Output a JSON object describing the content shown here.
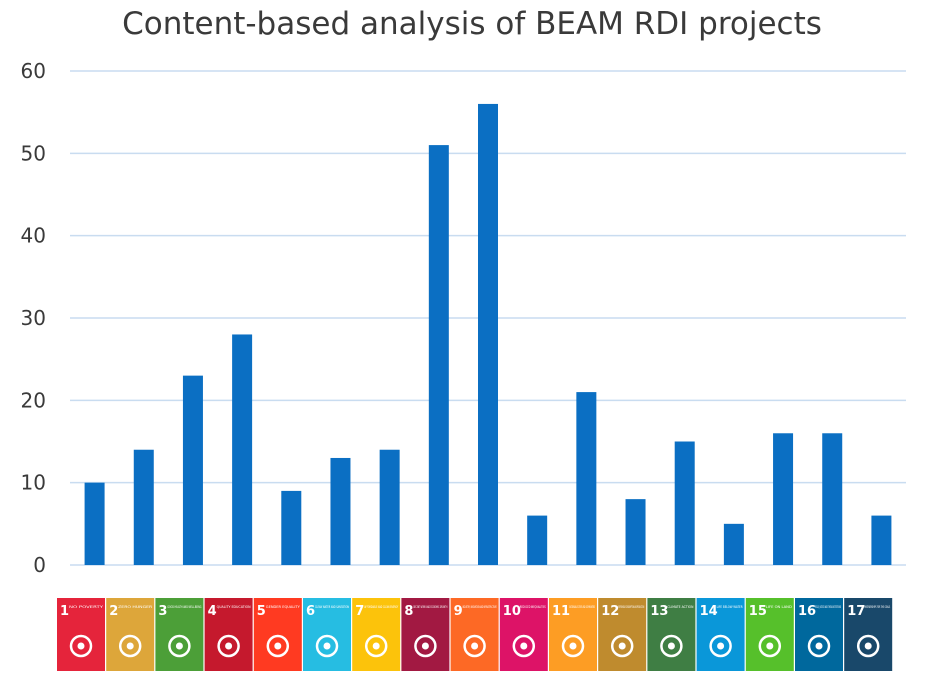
{
  "chart_data": {
    "type": "bar",
    "title": "Content-based analysis of BEAM RDI projects",
    "xlabel": "",
    "ylabel": "",
    "ylim": [
      0,
      60
    ],
    "yticks": [
      "0",
      "10",
      "20",
      "30",
      "40",
      "50",
      "60"
    ],
    "grid": true,
    "bar_color": "#0b6fc3",
    "grid_color": "#c9dcf0",
    "categories": [
      "1",
      "2",
      "3",
      "4",
      "5",
      "6",
      "7",
      "8",
      "9",
      "10",
      "11",
      "12",
      "13",
      "14",
      "15",
      "16",
      "17"
    ],
    "values": [
      10,
      14,
      23,
      28,
      9,
      13,
      14,
      51,
      56,
      6,
      21,
      8,
      15,
      5,
      16,
      16,
      6
    ]
  },
  "sdg_tiles": [
    {
      "num": "1",
      "label": "NO POVERTY",
      "color": "#e5243b",
      "icon": "people-icon"
    },
    {
      "num": "2",
      "label": "ZERO HUNGER",
      "color": "#dda63a",
      "icon": "bowl-icon"
    },
    {
      "num": "3",
      "label": "GOOD HEALTH AND WELL-BEING",
      "color": "#4c9f38",
      "icon": "heartbeat-icon"
    },
    {
      "num": "4",
      "label": "QUALITY EDUCATION",
      "color": "#c5192d",
      "icon": "book-icon"
    },
    {
      "num": "5",
      "label": "GENDER EQUALITY",
      "color": "#ff3a21",
      "icon": "gender-icon"
    },
    {
      "num": "6",
      "label": "CLEAN WATER AND SANITATION",
      "color": "#26bde2",
      "icon": "water-icon"
    },
    {
      "num": "7",
      "label": "AFFORDABLE AND CLEAN ENERGY",
      "color": "#fcc30b",
      "icon": "sun-icon"
    },
    {
      "num": "8",
      "label": "DECENT WORK AND ECONOMIC GROWTH",
      "color": "#a21942",
      "icon": "growth-chart-icon"
    },
    {
      "num": "9",
      "label": "INDUSTRY, INNOVATION AND INFRASTRUCTURE",
      "color": "#fd6925",
      "icon": "cubes-icon"
    },
    {
      "num": "10",
      "label": "REDUCED INEQUALITIES",
      "color": "#dd1367",
      "icon": "equality-icon"
    },
    {
      "num": "11",
      "label": "SUSTAINABLE CITIES AND COMMUNITIES",
      "color": "#fd9d24",
      "icon": "city-icon"
    },
    {
      "num": "12",
      "label": "RESPONSIBLE CONSUMPTION AND PRODUCTION",
      "color": "#bf8b2e",
      "icon": "infinity-icon"
    },
    {
      "num": "13",
      "label": "CLIMATE ACTION",
      "color": "#3f7e44",
      "icon": "eye-icon"
    },
    {
      "num": "14",
      "label": "LIFE BELOW WATER",
      "color": "#0a97d9",
      "icon": "fish-icon"
    },
    {
      "num": "15",
      "label": "LIFE ON LAND",
      "color": "#56c02b",
      "icon": "tree-icon"
    },
    {
      "num": "16",
      "label": "PEACE, JUSTICE AND STRONG INSTITUTIONS",
      "color": "#00689d",
      "icon": "dove-icon"
    },
    {
      "num": "17",
      "label": "PARTNERSHIPS FOR THE GOALS",
      "color": "#19486a",
      "icon": "flower-icon"
    }
  ]
}
